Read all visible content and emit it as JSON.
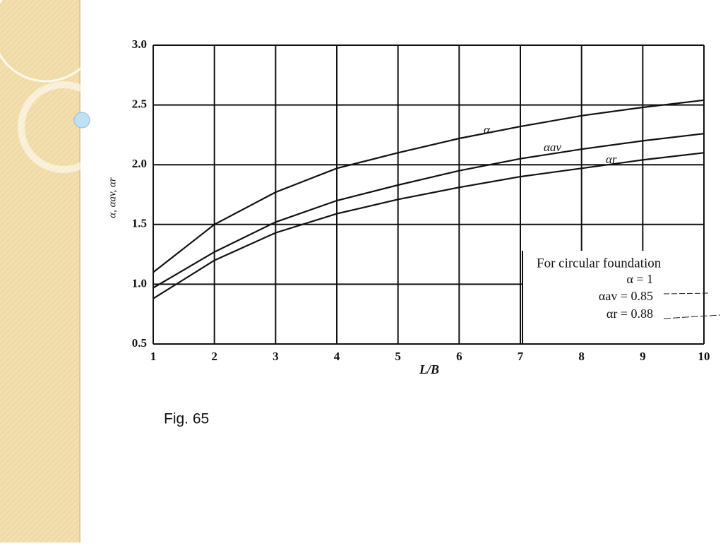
{
  "chart_data": {
    "type": "line",
    "x_label": "L/B",
    "y_label": "α, αav, αr",
    "x": [
      1,
      2,
      3,
      4,
      5,
      6,
      7,
      8,
      9,
      10
    ],
    "series": [
      {
        "name": "α",
        "color": "#111111",
        "values": [
          1.1,
          1.5,
          1.77,
          1.97,
          2.1,
          2.22,
          2.32,
          2.41,
          2.48,
          2.54
        ]
      },
      {
        "name": "αav",
        "color": "#111111",
        "values": [
          0.97,
          1.27,
          1.52,
          1.7,
          1.83,
          1.95,
          2.05,
          2.13,
          2.2,
          2.26
        ]
      },
      {
        "name": "αr",
        "color": "#111111",
        "values": [
          0.88,
          1.2,
          1.43,
          1.59,
          1.71,
          1.81,
          1.9,
          1.97,
          2.04,
          2.1
        ]
      }
    ],
    "xlim": [
      1,
      10
    ],
    "xticks": [
      1,
      2,
      3,
      4,
      5,
      6,
      7,
      8,
      9,
      10
    ],
    "ylim": [
      0.5,
      3
    ],
    "yticks": [
      0.5,
      {
        "value": 1,
        "label": "1.0"
      },
      1.5,
      {
        "value": 2,
        "label": "2.0"
      },
      2.5,
      {
        "value": 3,
        "label": "3.0"
      }
    ],
    "grid": true,
    "note": {
      "title": "For circular foundation",
      "lines": [
        "α = 1",
        "αav = 0.85",
        "αr = 0.88"
      ]
    },
    "caption": "Fig. 65"
  }
}
